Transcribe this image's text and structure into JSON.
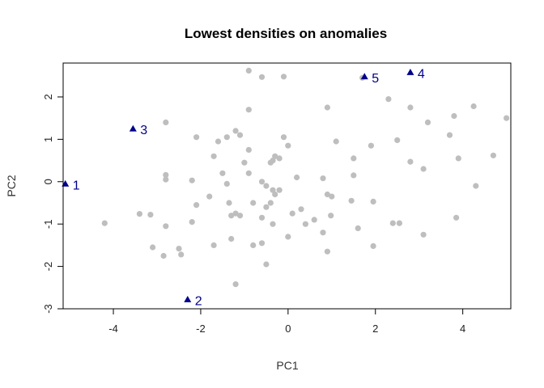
{
  "chart_data": {
    "type": "scatter",
    "title": "Lowest densities on anomalies",
    "xlabel": "PC1",
    "ylabel": "PC2",
    "xlim": [
      -5.15,
      5.1
    ],
    "ylim": [
      -3.0,
      2.8
    ],
    "xticks": [
      -4,
      -2,
      0,
      2,
      4
    ],
    "yticks": [
      -3,
      -2,
      -1,
      0,
      1,
      2
    ],
    "grid": false,
    "colors": {
      "normal": "#bebebe",
      "anomaly": "#00008b",
      "frame": "#000000"
    },
    "normal_points": [
      [
        -0.9,
        2.62
      ],
      [
        -0.6,
        2.47
      ],
      [
        -0.1,
        2.48
      ],
      [
        -0.9,
        1.7
      ],
      [
        0.9,
        1.75
      ],
      [
        1.7,
        2.45
      ],
      [
        2.3,
        1.95
      ],
      [
        2.8,
        1.75
      ],
      [
        3.2,
        1.4
      ],
      [
        3.8,
        1.55
      ],
      [
        4.25,
        1.78
      ],
      [
        5.0,
        1.5
      ],
      [
        -2.8,
        1.4
      ],
      [
        -2.1,
        1.05
      ],
      [
        -1.7,
        0.6
      ],
      [
        -1.6,
        0.95
      ],
      [
        -1.4,
        1.05
      ],
      [
        -1.2,
        1.2
      ],
      [
        -1.1,
        1.1
      ],
      [
        -0.9,
        0.75
      ],
      [
        -0.1,
        1.05
      ],
      [
        0.0,
        0.85
      ],
      [
        1.1,
        0.95
      ],
      [
        1.9,
        0.85
      ],
      [
        2.5,
        0.98
      ],
      [
        3.7,
        1.1
      ],
      [
        4.7,
        0.62
      ],
      [
        -2.8,
        0.16
      ],
      [
        -2.8,
        0.05
      ],
      [
        -2.2,
        0.03
      ],
      [
        -1.5,
        0.2
      ],
      [
        -1.0,
        0.45
      ],
      [
        -0.9,
        0.2
      ],
      [
        -0.6,
        0.0
      ],
      [
        -0.4,
        0.45
      ],
      [
        -0.3,
        0.6
      ],
      [
        -0.2,
        0.55
      ],
      [
        -0.35,
        0.5
      ],
      [
        0.2,
        0.1
      ],
      [
        0.8,
        0.08
      ],
      [
        1.5,
        0.55
      ],
      [
        1.5,
        0.15
      ],
      [
        2.8,
        0.47
      ],
      [
        3.1,
        0.3
      ],
      [
        3.9,
        0.55
      ],
      [
        4.3,
        -0.1
      ],
      [
        -1.8,
        -0.35
      ],
      [
        -1.4,
        -0.05
      ],
      [
        -1.35,
        -0.5
      ],
      [
        -0.8,
        -0.5
      ],
      [
        -0.5,
        -0.1
      ],
      [
        -0.35,
        -0.2
      ],
      [
        -0.2,
        -0.2
      ],
      [
        -0.3,
        -0.3
      ],
      [
        -0.5,
        -0.6
      ],
      [
        -0.4,
        -0.5
      ],
      [
        0.1,
        -0.75
      ],
      [
        0.3,
        -0.65
      ],
      [
        0.6,
        -0.9
      ],
      [
        0.9,
        -0.3
      ],
      [
        1.0,
        -0.35
      ],
      [
        1.45,
        -0.45
      ],
      [
        1.95,
        -0.47
      ],
      [
        0.98,
        -0.8
      ],
      [
        -4.2,
        -0.98
      ],
      [
        -3.4,
        -0.76
      ],
      [
        -3.15,
        -0.78
      ],
      [
        -2.8,
        -1.05
      ],
      [
        -2.2,
        -0.95
      ],
      [
        -2.1,
        -0.55
      ],
      [
        -1.3,
        -0.8
      ],
      [
        -1.2,
        -0.75
      ],
      [
        -1.1,
        -0.8
      ],
      [
        -0.6,
        -0.85
      ],
      [
        -0.35,
        -1.0
      ],
      [
        0.0,
        -1.3
      ],
      [
        0.4,
        -1.0
      ],
      [
        0.8,
        -1.2
      ],
      [
        1.6,
        -1.1
      ],
      [
        2.4,
        -0.98
      ],
      [
        2.55,
        -0.98
      ],
      [
        3.85,
        -0.85
      ],
      [
        -3.1,
        -1.55
      ],
      [
        -2.85,
        -1.75
      ],
      [
        -2.5,
        -1.58
      ],
      [
        -2.45,
        -1.72
      ],
      [
        -1.7,
        -1.5
      ],
      [
        -1.3,
        -1.35
      ],
      [
        -0.8,
        -1.5
      ],
      [
        -0.6,
        -1.45
      ],
      [
        -0.5,
        -1.95
      ],
      [
        0.9,
        -1.65
      ],
      [
        1.95,
        -1.52
      ],
      [
        3.1,
        -1.25
      ],
      [
        -1.2,
        -2.42
      ]
    ],
    "anomalies": [
      {
        "label": "1",
        "x": -5.1,
        "y": -0.05
      },
      {
        "label": "2",
        "x": -2.3,
        "y": -2.78
      },
      {
        "label": "3",
        "x": -3.55,
        "y": 1.25
      },
      {
        "label": "4",
        "x": 2.8,
        "y": 2.58
      },
      {
        "label": "5",
        "x": 1.75,
        "y": 2.48
      }
    ]
  }
}
